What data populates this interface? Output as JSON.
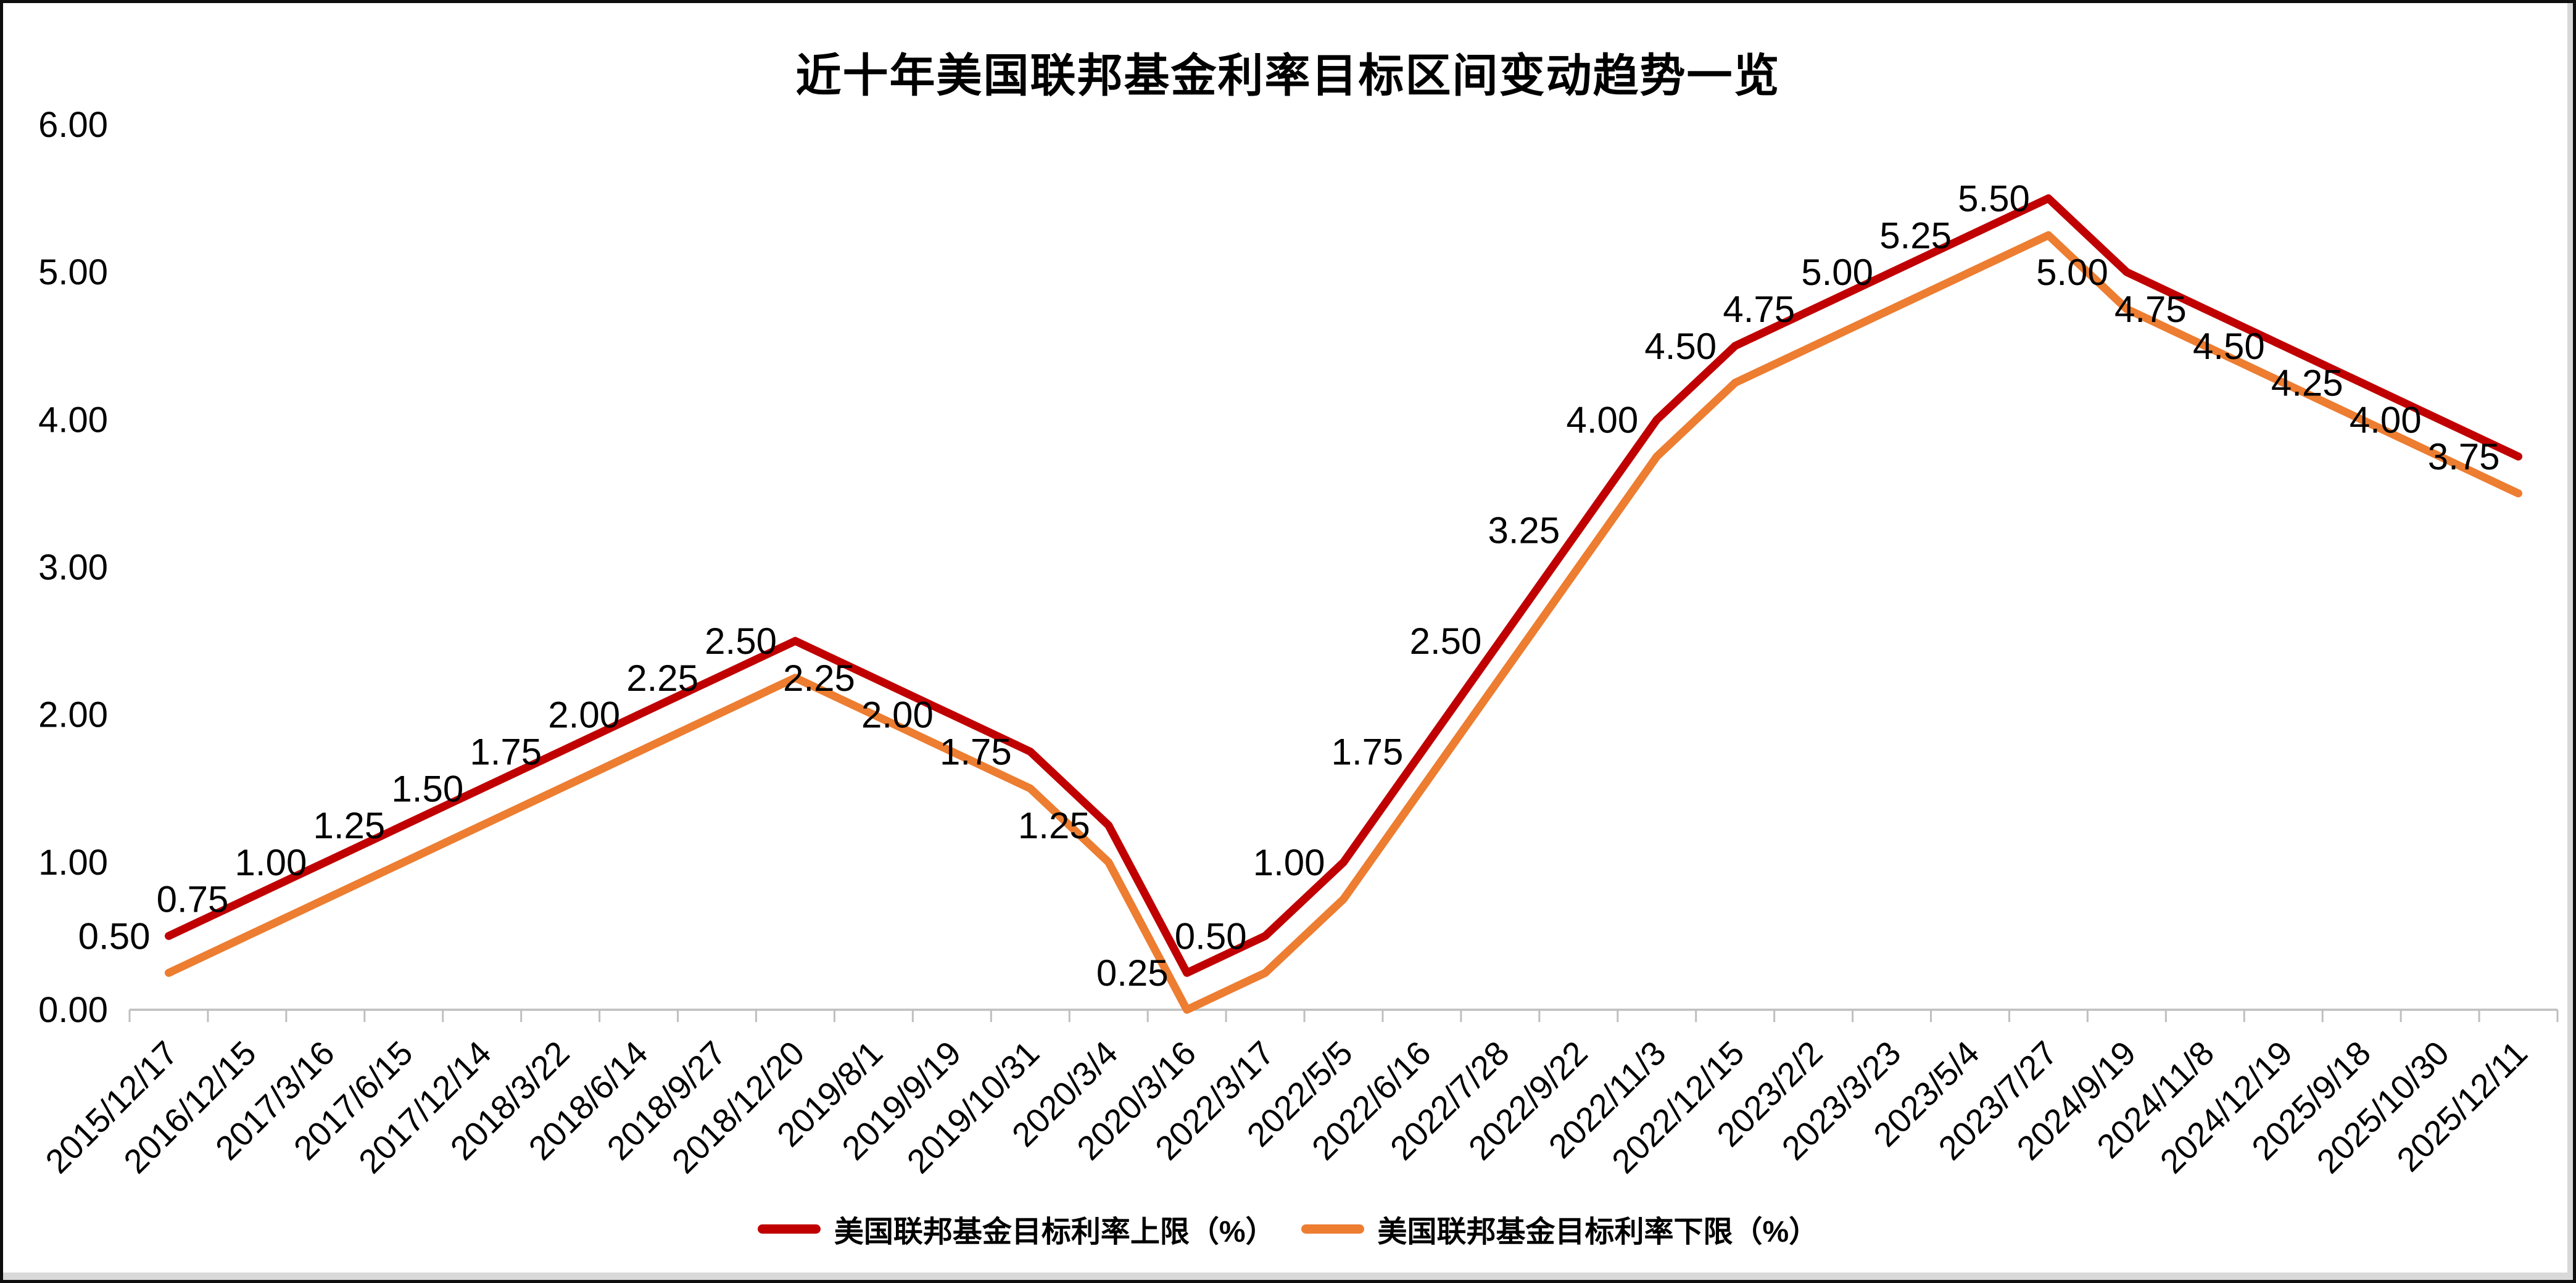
{
  "frame": {
    "background": "#FFFFFF",
    "border_color": "#0E0E0E",
    "edge_color": "#D9D9D9"
  },
  "chart_data": {
    "type": "line",
    "title": "近十年美国联邦基金利率目标区间变动趋势一览",
    "categories": [
      "2015/12/17",
      "2016/12/15",
      "2017/3/16",
      "2017/6/15",
      "2017/12/14",
      "2018/3/22",
      "2018/6/14",
      "2018/9/27",
      "2018/12/20",
      "2019/8/1",
      "2019/9/19",
      "2019/10/31",
      "2020/3/4",
      "2020/3/16",
      "2022/3/17",
      "2022/5/5",
      "2022/6/16",
      "2022/7/28",
      "2022/9/22",
      "2022/11/3",
      "2022/12/15",
      "2023/2/2",
      "2023/3/23",
      "2023/5/4",
      "2023/7/27",
      "2024/9/19",
      "2024/11/8",
      "2024/12/19",
      "2025/9/18",
      "2025/10/30",
      "2025/12/11"
    ],
    "series": [
      {
        "name": "美国联邦基金目标利率上限（%）",
        "color": "#C00000",
        "values": [
          0.5,
          0.75,
          1.0,
          1.25,
          1.5,
          1.75,
          2.0,
          2.25,
          2.5,
          2.25,
          2.0,
          1.75,
          1.25,
          0.25,
          0.5,
          1.0,
          1.75,
          2.5,
          3.25,
          4.0,
          4.5,
          4.75,
          5.0,
          5.25,
          5.5,
          5.0,
          4.75,
          4.5,
          4.25,
          4.0,
          3.75
        ]
      },
      {
        "name": "美国联邦基金目标利率下限（%）",
        "color": "#ED7D31",
        "values": [
          0.25,
          0.5,
          0.75,
          1.0,
          1.25,
          1.5,
          1.75,
          2.0,
          2.25,
          2.0,
          1.75,
          1.5,
          1.0,
          0.0,
          0.25,
          0.75,
          1.5,
          2.25,
          3.0,
          3.75,
          4.25,
          4.5,
          4.75,
          5.0,
          5.25,
          4.75,
          4.5,
          4.25,
          4.0,
          3.75,
          3.5
        ]
      }
    ],
    "y_axis": {
      "min": 0,
      "max": 6,
      "step": 1,
      "tick_labels": [
        "0.00",
        "1.00",
        "2.00",
        "3.00",
        "4.00",
        "5.00",
        "6.00"
      ]
    },
    "x_axis": {
      "label_rotation_deg": 45
    },
    "data_labels": {
      "shown_for_series": "美国联邦基金目标利率上限（%）",
      "position": "left",
      "format": "0.00"
    },
    "legend_position": "bottom",
    "gridlines": false,
    "axis_color": "#BFBFBF",
    "text_color": "#000000"
  }
}
